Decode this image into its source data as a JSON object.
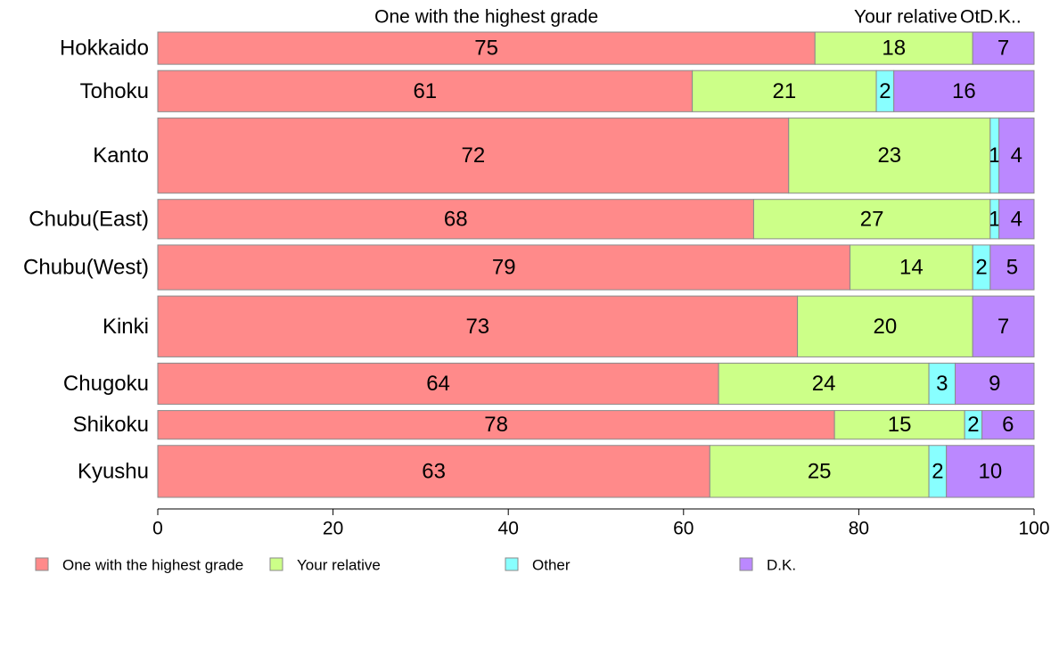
{
  "chart_data": {
    "type": "bar",
    "orientation": "horizontal",
    "stacked": true,
    "percent": true,
    "categories": [
      "Hokkaido",
      "Tohoku",
      "Kanto",
      "Chubu(East)",
      "Chubu(West)",
      "Kinki",
      "Chugoku",
      "Shikoku",
      "Kyushu"
    ],
    "series": [
      {
        "name": "One with the highest grade",
        "color": "#ff8a8a",
        "values": [
          75,
          61,
          72,
          68,
          79,
          73,
          64,
          78,
          63
        ],
        "header": "One with the highest grade"
      },
      {
        "name": "Your relative",
        "color": "#ccff88",
        "values": [
          18,
          21,
          23,
          27,
          14,
          20,
          24,
          15,
          25
        ],
        "header": "Your relative"
      },
      {
        "name": "Other",
        "color": "#88ffff",
        "values": [
          0,
          2,
          1,
          1,
          2,
          0,
          3,
          2,
          2
        ],
        "header": "Ot"
      },
      {
        "name": "D.K.",
        "color": "#bb88ff",
        "values": [
          7,
          16,
          4,
          4,
          5,
          7,
          9,
          6,
          10
        ],
        "header": "D.K.."
      }
    ],
    "category_weights": [
      36,
      46,
      84,
      44,
      50,
      68,
      46,
      32,
      58
    ],
    "xlim": [
      0,
      100
    ],
    "xticks": [
      "0",
      "20",
      "40",
      "60",
      "80",
      "100"
    ],
    "grid": false,
    "legend_position": "bottom"
  }
}
